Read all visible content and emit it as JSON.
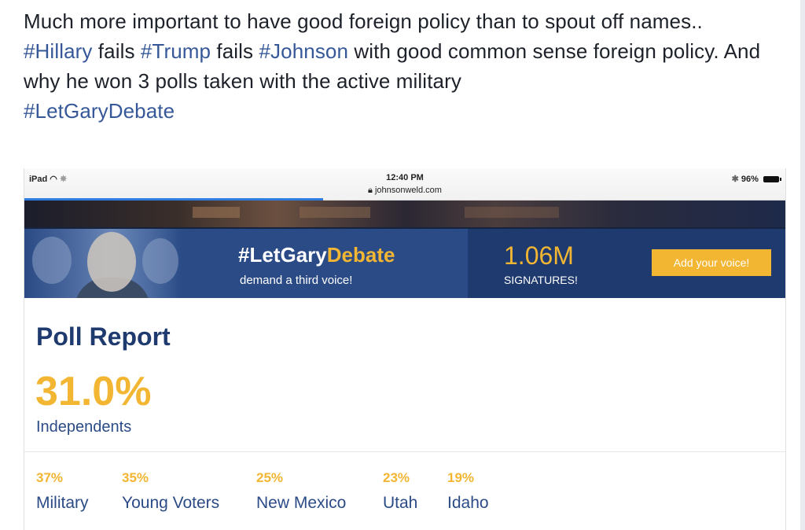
{
  "post": {
    "line1": "Much more important to have good foreign policy than to spout off names..",
    "tag_hillary": "#Hillary",
    "word_fails_1": " fails ",
    "tag_trump": "#Trump",
    "word_fails_2": " fails ",
    "tag_johnson": "#Johnson",
    "line2_rest": " with good common sense foreign policy. And why he won 3 polls taken with the active military",
    "tag_letgary": "#LetGaryDebate"
  },
  "status_bar": {
    "device": "iPad",
    "time": "12:40 PM",
    "url": "johnsonweld.com",
    "battery": "96%"
  },
  "banner": {
    "hashtag_prefix": "#Let",
    "hashtag_name": "Gary",
    "hashtag_suffix": "Debate",
    "subtitle": "demand a third voice!",
    "signature_count": "1.06M",
    "signature_label": "SIGNATURES!",
    "cta_label": "Add your voice!"
  },
  "poll": {
    "title": "Poll Report",
    "headline_value": "31.0%",
    "headline_label": "Independents",
    "stats": [
      {
        "value": "37%",
        "label": "Military"
      },
      {
        "value": "35%",
        "label": "Young Voters"
      },
      {
        "value": "25%",
        "label": "New Mexico"
      },
      {
        "value": "23%",
        "label": "Utah"
      },
      {
        "value": "19%",
        "label": "Idaho"
      }
    ]
  },
  "colors": {
    "hashtag_link": "#365899",
    "brand_blue": "#2b4b86",
    "brand_navy": "#1f3a6e",
    "brand_gold": "#f2b632"
  }
}
